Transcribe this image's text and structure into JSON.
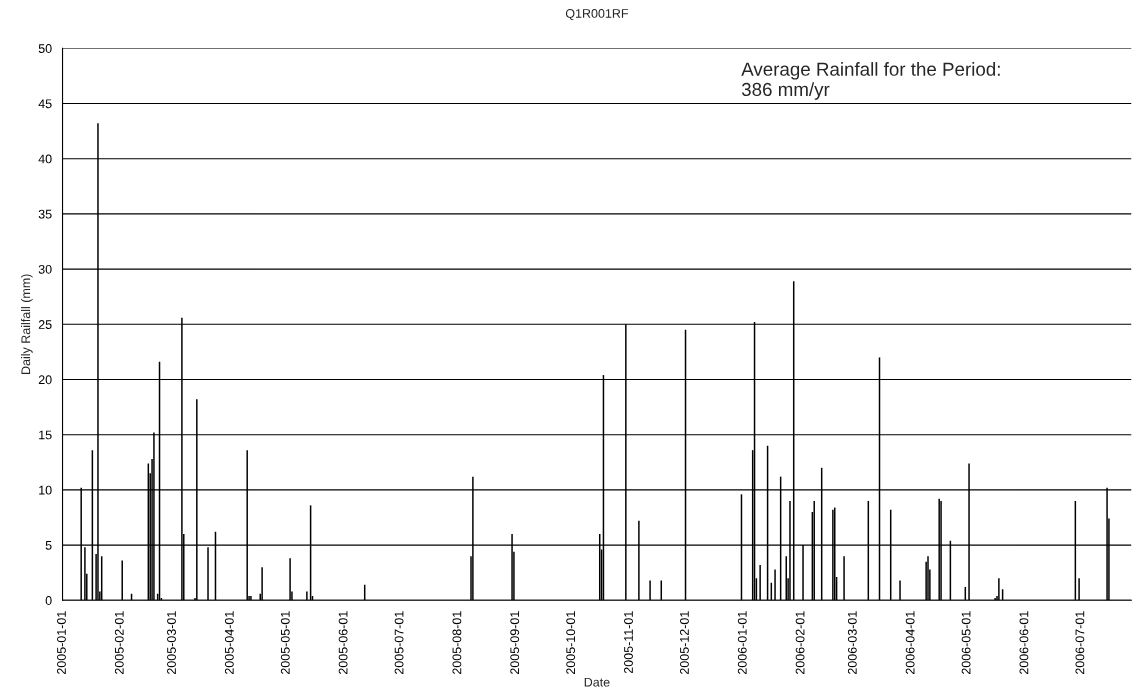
{
  "chart_data": {
    "type": "bar",
    "title": "Q1R001RF",
    "xlabel": "Date",
    "ylabel": "Daily Railfall (mm)",
    "x": [
      "2005-01-11",
      "2005-01-13",
      "2005-01-14",
      "2005-01-17",
      "2005-01-19",
      "2005-01-20",
      "2005-01-21",
      "2005-01-22",
      "2005-02-02",
      "2005-02-07",
      "2005-02-16",
      "2005-02-17",
      "2005-02-18",
      "2005-02-19",
      "2005-02-21",
      "2005-02-22",
      "2005-02-23",
      "2005-03-06",
      "2005-03-07",
      "2005-03-13",
      "2005-03-14",
      "2005-03-20",
      "2005-03-24",
      "2005-04-10",
      "2005-04-11",
      "2005-04-12",
      "2005-04-17",
      "2005-04-18",
      "2005-05-03",
      "2005-05-04",
      "2005-05-12",
      "2005-05-14",
      "2005-05-15",
      "2005-06-12",
      "2005-08-08",
      "2005-08-09",
      "2005-08-30",
      "2005-08-31",
      "2005-10-16",
      "2005-10-17",
      "2005-10-18",
      "2005-10-30",
      "2005-11-06",
      "2005-11-12",
      "2005-11-18",
      "2005-12-01",
      "2005-12-31",
      "2006-01-06",
      "2006-01-07",
      "2006-01-08",
      "2006-01-10",
      "2006-01-14",
      "2006-01-16",
      "2006-01-18",
      "2006-01-21",
      "2006-01-24",
      "2006-01-25",
      "2006-01-26",
      "2006-01-28",
      "2006-02-02",
      "2006-02-07",
      "2006-02-08",
      "2006-02-12",
      "2006-02-18",
      "2006-02-19",
      "2006-02-20",
      "2006-02-24",
      "2006-03-09",
      "2006-03-15",
      "2006-03-21",
      "2006-03-26",
      "2006-04-09",
      "2006-04-10",
      "2006-04-11",
      "2006-04-16",
      "2006-04-17",
      "2006-04-22",
      "2006-04-30",
      "2006-05-02",
      "2006-05-16",
      "2006-05-17",
      "2006-05-18",
      "2006-05-20",
      "2006-06-28",
      "2006-06-30",
      "2006-07-15",
      "2006-07-16"
    ],
    "values": [
      10.2,
      4.8,
      2.4,
      13.6,
      4.2,
      43.2,
      0.8,
      4.0,
      3.6,
      0.6,
      12.4,
      11.5,
      12.8,
      15.2,
      0.6,
      21.6,
      0.2,
      25.6,
      6.0,
      0.2,
      18.2,
      4.8,
      6.2,
      13.6,
      0.4,
      0.4,
      0.6,
      3.0,
      3.8,
      0.8,
      0.8,
      8.6,
      0.4,
      1.4,
      4.0,
      11.2,
      6.0,
      4.4,
      6.0,
      4.6,
      20.4,
      25.0,
      7.2,
      1.8,
      1.8,
      24.5,
      9.6,
      13.6,
      25.2,
      2.0,
      3.2,
      14.0,
      1.6,
      2.8,
      11.2,
      4.0,
      2.0,
      9.0,
      28.9,
      5.0,
      8.0,
      9.0,
      12.0,
      8.2,
      8.4,
      2.1,
      4.0,
      9.0,
      22.0,
      8.2,
      1.8,
      3.5,
      4.0,
      2.8,
      9.2,
      9.0,
      5.4,
      1.2,
      12.4,
      0.2,
      0.4,
      2.0,
      1.0,
      9.0,
      2.0,
      10.2,
      7.4
    ],
    "color": "#000000",
    "xlim": [
      "2005-01-01",
      "2006-07-28"
    ],
    "xticks": [
      "2005-01-01",
      "2005-02-01",
      "2005-03-01",
      "2005-04-01",
      "2005-05-01",
      "2005-06-01",
      "2005-07-01",
      "2005-08-01",
      "2005-09-01",
      "2005-10-01",
      "2005-11-01",
      "2005-12-01",
      "2006-01-01",
      "2006-02-01",
      "2006-03-01",
      "2006-04-01",
      "2006-05-01",
      "2006-06-01",
      "2006-07-01"
    ],
    "ylim": [
      0,
      50
    ],
    "yticks": [
      0,
      5,
      10,
      15,
      20,
      25,
      30,
      35,
      40,
      45,
      50
    ],
    "grid": "y",
    "annotations": [
      "Average Rainfall for the Period:\n386 mm/yr"
    ]
  }
}
